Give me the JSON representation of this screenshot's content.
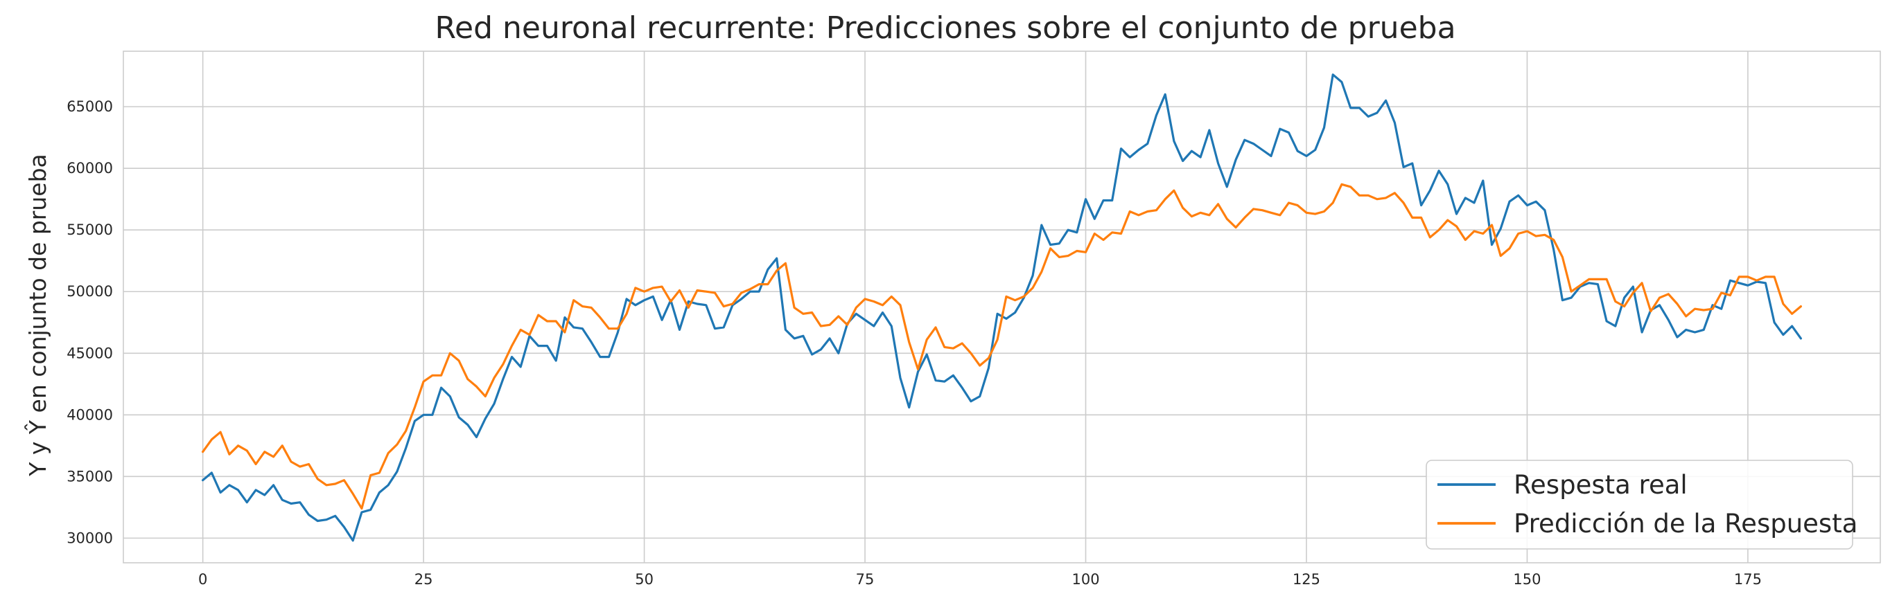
{
  "colors": {
    "real": "#1f77b4",
    "pred": "#ff7f0e",
    "grid": "#cccccc"
  },
  "chart_data": {
    "type": "line",
    "title": "Red neuronal recurrente: Predicciones sobre el conjunto de prueba",
    "xlabel": "",
    "ylabel": "Y y Ŷ en conjunto de prueba",
    "xlim": [
      -9,
      190
    ],
    "ylim": [
      28000,
      69500
    ],
    "xticks": [
      0,
      25,
      50,
      75,
      100,
      125,
      150,
      175
    ],
    "yticks": [
      30000,
      35000,
      40000,
      45000,
      50000,
      55000,
      60000,
      65000
    ],
    "grid": true,
    "legend_position": "bottom-right",
    "series": [
      {
        "name": "Respesta real",
        "values": [
          34700,
          35300,
          33700,
          34300,
          33900,
          32900,
          33900,
          33500,
          34300,
          33100,
          32800,
          32900,
          31900,
          31400,
          31500,
          31800,
          30900,
          29800,
          32100,
          32300,
          33700,
          34300,
          35400,
          37300,
          39500,
          40000,
          40000,
          42200,
          41500,
          39800,
          39200,
          38200,
          39700,
          40900,
          42900,
          44700,
          43900,
          46400,
          45600,
          45600,
          44400,
          47900,
          47100,
          47000,
          45900,
          44700,
          44700,
          46700,
          49400,
          48900,
          49300,
          49600,
          47700,
          49300,
          46900,
          49200,
          49000,
          48900,
          47000,
          47100,
          48900,
          49400,
          50000,
          50000,
          51800,
          52700,
          46900,
          46200,
          46400,
          44900,
          45300,
          46200,
          45000,
          47400,
          48200,
          47700,
          47200,
          48300,
          47200,
          43000,
          40600,
          43500,
          44900,
          42800,
          42700,
          43200,
          42200,
          41100,
          41500,
          43800,
          48200,
          47800,
          48300,
          49500,
          51300,
          55400,
          53800,
          53900,
          55000,
          54800,
          57500,
          55900,
          57400,
          57400,
          61600,
          60900,
          61500,
          62000,
          64300,
          66000,
          62200,
          60600,
          61400,
          60900,
          63100,
          60400,
          58500,
          60700,
          62300,
          62000,
          61500,
          61000,
          63200,
          62900,
          61400,
          61000,
          61500,
          63300,
          67600,
          67000,
          64900,
          64900,
          64200,
          64500,
          65500,
          63700,
          60100,
          60400,
          57000,
          58200,
          59800,
          58700,
          56300,
          57600,
          57200,
          59000,
          53800,
          55100,
          57300,
          57800,
          57000,
          57300,
          56600,
          53400,
          49300,
          49500,
          50400,
          50700,
          50600,
          47600,
          47200,
          49500,
          50400,
          46700,
          48500,
          48900,
          47700,
          46300,
          46900,
          46700,
          46900,
          48900,
          48600,
          50900,
          50700,
          50500,
          50800,
          50700,
          47500,
          46500,
          47200,
          46200
        ]
      },
      {
        "name": "Predicción de la Respuesta",
        "values": [
          37000,
          38000,
          38600,
          36800,
          37500,
          37100,
          36000,
          37000,
          36600,
          37500,
          36200,
          35800,
          36000,
          34800,
          34300,
          34400,
          34700,
          33600,
          32400,
          35100,
          35300,
          36900,
          37600,
          38700,
          40600,
          42700,
          43200,
          43200,
          45000,
          44400,
          42900,
          42300,
          41500,
          43000,
          44100,
          45600,
          46900,
          46500,
          48100,
          47600,
          47600,
          46700,
          49300,
          48800,
          48700,
          47900,
          47000,
          47000,
          48200,
          50300,
          50000,
          50300,
          50400,
          49200,
          50100,
          48700,
          50100,
          50000,
          49900,
          48800,
          49000,
          49900,
          50200,
          50600,
          50600,
          51700,
          52300,
          48700,
          48200,
          48300,
          47200,
          47300,
          48000,
          47300,
          48700,
          49400,
          49200,
          48900,
          49600,
          48900,
          45900,
          43700,
          46100,
          47100,
          45500,
          45400,
          45800,
          45000,
          44000,
          44600,
          46100,
          49600,
          49300,
          49600,
          50300,
          51600,
          53500,
          52800,
          52900,
          53300,
          53200,
          54700,
          54200,
          54800,
          54700,
          56500,
          56200,
          56500,
          56600,
          57500,
          58200,
          56800,
          56100,
          56400,
          56200,
          57100,
          55900,
          55200,
          56000,
          56700,
          56600,
          56400,
          56200,
          57200,
          57000,
          56400,
          56300,
          56500,
          57200,
          58700,
          58500,
          57800,
          57800,
          57500,
          57600,
          58000,
          57200,
          56000,
          56000,
          54400,
          55000,
          55800,
          55300,
          54200,
          54900,
          54700,
          55400,
          52900,
          53500,
          54700,
          54900,
          54500,
          54600,
          54200,
          52800,
          50000,
          50500,
          51000,
          51000,
          51000,
          49200,
          48800,
          49900,
          50700,
          48400,
          49500,
          49800,
          49000,
          48000,
          48600,
          48500,
          48600,
          49900,
          49700,
          51200,
          51200,
          50900,
          51200,
          51200,
          49000,
          48200,
          48800
        ]
      }
    ]
  }
}
